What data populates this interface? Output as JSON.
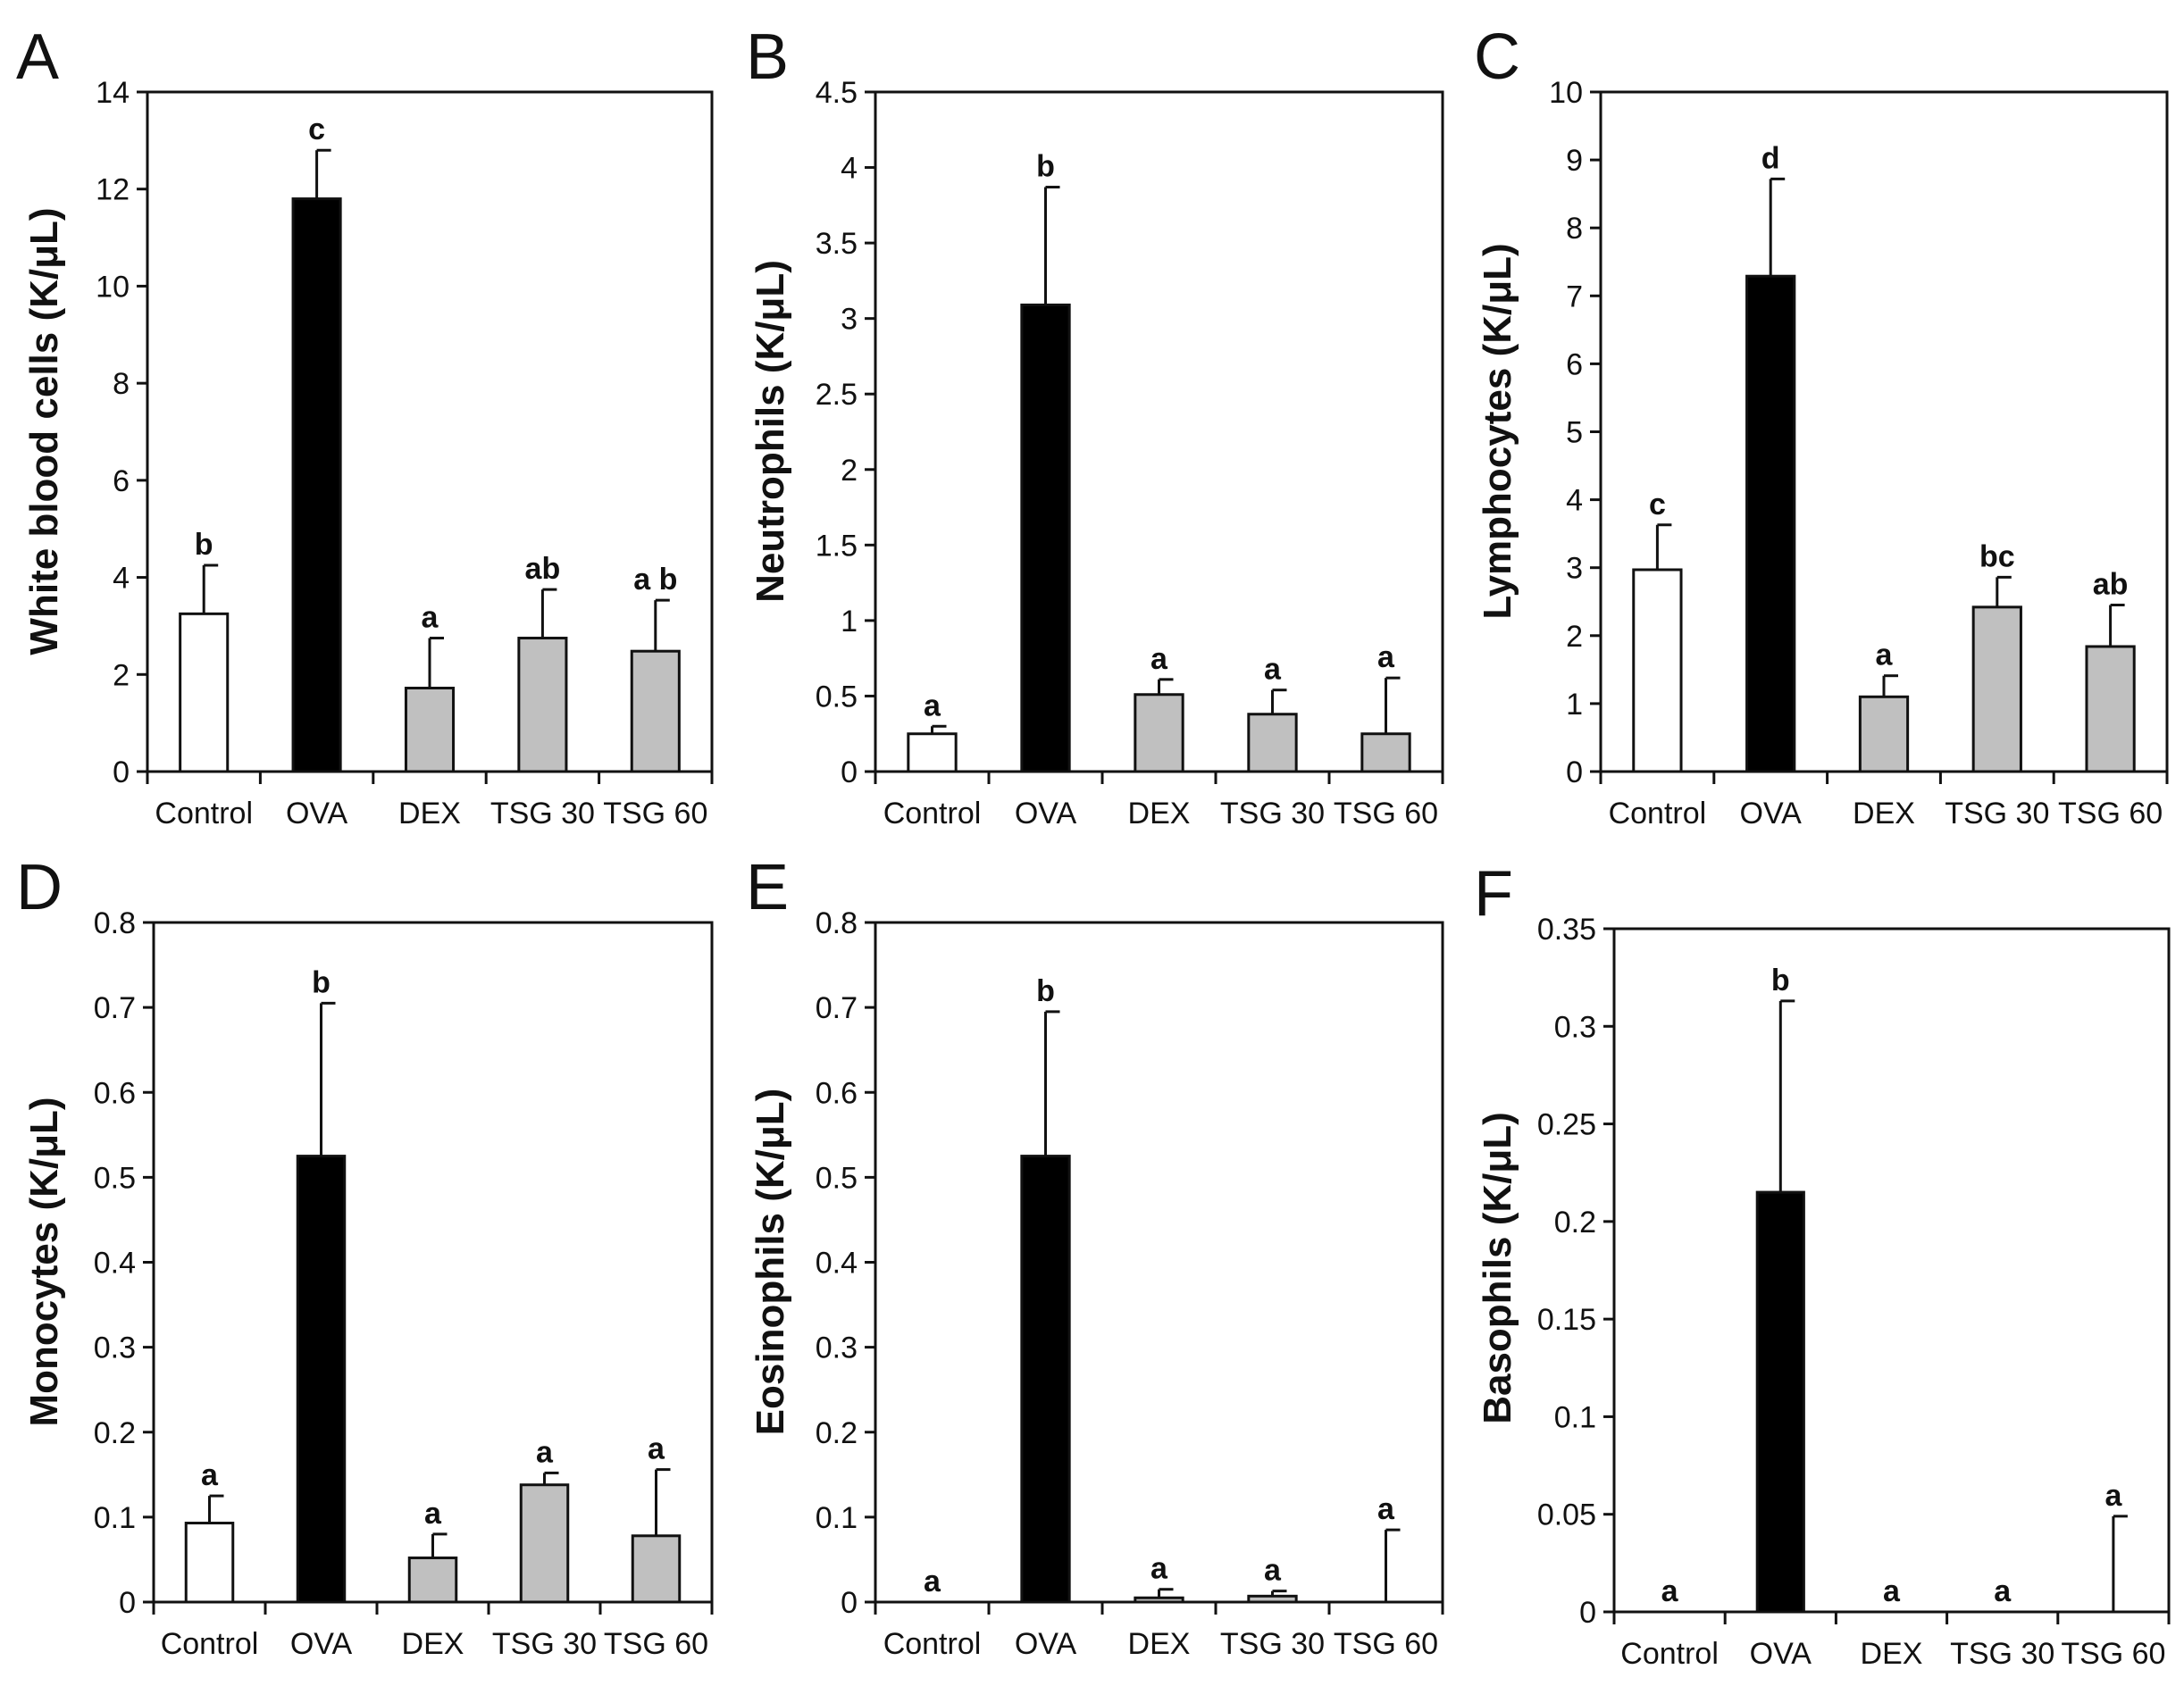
{
  "chart_data": [
    {
      "type": "bar",
      "panel": "A",
      "ylabel": "White blood cells (K/μL)",
      "ylim": [
        0,
        14
      ],
      "ytick_step": 2,
      "yticks": [
        "0",
        "2",
        "4",
        "6",
        "8",
        "10",
        "12",
        "14"
      ],
      "categories": [
        "Control",
        "OVA",
        "DEX",
        "TSG 30",
        "TSG 60"
      ],
      "values": [
        3.25,
        11.8,
        1.72,
        2.75,
        2.48
      ],
      "errors": [
        1.0,
        1.0,
        1.03,
        1.0,
        1.05
      ],
      "significance": [
        "b",
        "c",
        "a",
        "ab",
        "a b"
      ]
    },
    {
      "type": "bar",
      "panel": "B",
      "ylabel": "Neutrophils (K/μL)",
      "ylim": [
        0,
        4.5
      ],
      "ytick_step": 0.5,
      "yticks": [
        "0",
        "0.5",
        "1",
        "1.5",
        "2",
        "2.5",
        "3",
        "3.5",
        "4",
        "4.5"
      ],
      "categories": [
        "Control",
        "OVA",
        "DEX",
        "TSG 30",
        "TSG 60"
      ],
      "values": [
        0.25,
        3.09,
        0.51,
        0.38,
        0.25
      ],
      "errors": [
        0.05,
        0.78,
        0.1,
        0.16,
        0.37
      ],
      "significance": [
        "a",
        "b",
        "a",
        "a",
        "a"
      ]
    },
    {
      "type": "bar",
      "panel": "C",
      "ylabel": "Lymphocytes (K/μL)",
      "ylim": [
        0,
        10
      ],
      "ytick_step": 1,
      "yticks": [
        "0",
        "1",
        "2",
        "3",
        "4",
        "5",
        "6",
        "7",
        "8",
        "9",
        "10"
      ],
      "categories": [
        "Control",
        "OVA",
        "DEX",
        "TSG 30",
        "TSG 60"
      ],
      "values": [
        2.97,
        7.29,
        1.1,
        2.42,
        1.84
      ],
      "errors": [
        0.66,
        1.43,
        0.31,
        0.44,
        0.61
      ],
      "significance": [
        "c",
        "d",
        "a",
        "bc",
        "ab"
      ]
    },
    {
      "type": "bar",
      "panel": "D",
      "ylabel": "Monocytes (K/μL)",
      "ylim": [
        0,
        0.8
      ],
      "ytick_step": 0.1,
      "yticks": [
        "0",
        "0.1",
        "0.2",
        "0.3",
        "0.4",
        "0.5",
        "0.6",
        "0.7",
        "0.8"
      ],
      "categories": [
        "Control",
        "OVA",
        "DEX",
        "TSG 30",
        "TSG 60"
      ],
      "values": [
        0.093,
        0.525,
        0.052,
        0.138,
        0.078
      ],
      "errors": [
        0.032,
        0.18,
        0.028,
        0.014,
        0.078
      ],
      "significance": [
        "a",
        "b",
        "a",
        "a",
        "a"
      ]
    },
    {
      "type": "bar",
      "panel": "E",
      "ylabel": "Eosinophils (K/μL)",
      "ylim": [
        0,
        0.8
      ],
      "ytick_step": 0.1,
      "yticks": [
        "0",
        "0.1",
        "0.2",
        "0.3",
        "0.4",
        "0.5",
        "0.6",
        "0.7",
        "0.8"
      ],
      "categories": [
        "Control",
        "OVA",
        "DEX",
        "TSG 30",
        "TSG 60"
      ],
      "values": [
        0,
        0.525,
        0.005,
        0.007,
        0
      ],
      "errors": [
        0,
        0.17,
        0.01,
        0.006,
        0.085
      ],
      "significance": [
        "a",
        "b",
        "a",
        "a",
        "a"
      ]
    },
    {
      "type": "bar",
      "panel": "F",
      "ylabel": "Basophils (K/μL)",
      "ylim": [
        0,
        0.35
      ],
      "ytick_step": 0.05,
      "yticks": [
        "0",
        "0.05",
        "0.1",
        "0.15",
        "0.2",
        "0.25",
        "0.3",
        "0.35"
      ],
      "categories": [
        "Control",
        "OVA",
        "DEX",
        "TSG 30",
        "TSG 60"
      ],
      "values": [
        0,
        0.215,
        0,
        0,
        0
      ],
      "errors": [
        0,
        0.098,
        0,
        0,
        0.049
      ],
      "significance": [
        "a",
        "b",
        "a",
        "a",
        "a"
      ]
    }
  ],
  "bar_colors": {
    "Control": "#ffffff",
    "OVA": "#000000",
    "DEX": "#c0c0c0",
    "TSG 30": "#c0c0c0",
    "TSG 60": "#c0c0c0"
  },
  "outline_color": "#111111"
}
